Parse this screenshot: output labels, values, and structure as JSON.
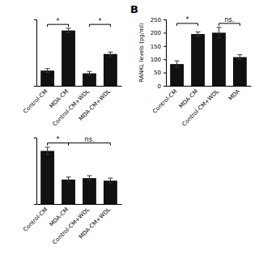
{
  "chart_data": [
    {
      "type": "bar",
      "categories": [
        "Control-CM",
        "MDA-CM",
        "Control-CM+WDL",
        "MDA-CM+WDL"
      ],
      "values": [
        55,
        200,
        45,
        115
      ],
      "errors": [
        7,
        8,
        7,
        7
      ],
      "ylim": [
        0,
        240
      ],
      "color": "#111111",
      "tick_labels": "x",
      "annotations": [
        {
          "text": "*",
          "x1": "Control-CM",
          "x2": "MDA-CM",
          "y": 222
        },
        {
          "text": "*",
          "x1": "Control-CM+WDL",
          "x2": "MDA-CM+WDL",
          "y": 222
        }
      ]
    },
    {
      "type": "bar",
      "title": "B",
      "y_label": "RANKL levels (pg/ml)",
      "categories": [
        "Control-CM",
        "MDA-CM",
        "Control-CM+WDL",
        "MDA"
      ],
      "values": [
        82,
        195,
        200,
        108
      ],
      "errors": [
        12,
        8,
        20,
        9
      ],
      "ylim": [
        0,
        250
      ],
      "yticks": [
        0,
        50,
        100,
        150,
        200,
        250
      ],
      "color": "#111111",
      "annotations": [
        {
          "text": "*",
          "x1": "Control-CM",
          "x2": "MDA-CM",
          "y": 235
        },
        {
          "text": "ns.",
          "x1": "Control-CM+WDL",
          "x2": "MDA",
          "y": 235
        }
      ]
    },
    {
      "type": "bar",
      "categories": [
        "Control-CM",
        "MDA-CM",
        "Control-CM+WDL",
        "MDA-CM+WDL"
      ],
      "values": [
        148,
        68,
        72,
        65
      ],
      "errors": [
        10,
        7,
        7,
        7
      ],
      "ylim": [
        0,
        185
      ],
      "color": "#111111",
      "tick_labels": "x",
      "annotations": [
        {
          "text": "*",
          "x1": "Control-CM",
          "x2": "MDA-CM",
          "y": 170
        },
        {
          "text": "ns.",
          "x1": "MDA-CM",
          "x2": "MDA-CM+WDL",
          "y": 170
        }
      ]
    }
  ]
}
